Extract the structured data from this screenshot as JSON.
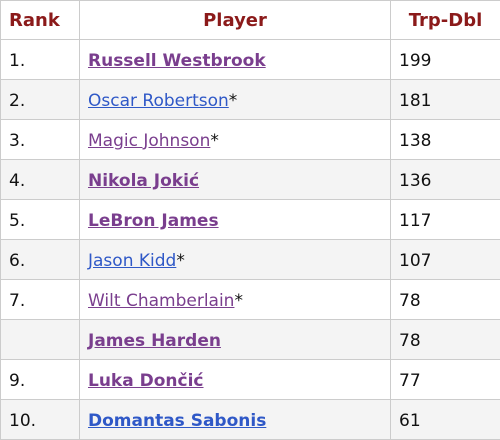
{
  "table": {
    "headers": {
      "rank": "Rank",
      "player": "Player",
      "trp_dbl": "Trp-Dbl"
    },
    "rows": [
      {
        "rank": "1.",
        "player": "Russell Westbrook",
        "hof": "",
        "value": "199",
        "active": true,
        "visited": true
      },
      {
        "rank": "2.",
        "player": "Oscar Robertson",
        "hof": "*",
        "value": "181",
        "active": false,
        "visited": false
      },
      {
        "rank": "3.",
        "player": "Magic Johnson",
        "hof": "*",
        "value": "138",
        "active": false,
        "visited": true
      },
      {
        "rank": "4.",
        "player": "Nikola Jokić",
        "hof": "",
        "value": "136",
        "active": true,
        "visited": true
      },
      {
        "rank": "5.",
        "player": "LeBron James",
        "hof": "",
        "value": "117",
        "active": true,
        "visited": true
      },
      {
        "rank": "6.",
        "player": "Jason Kidd",
        "hof": "*",
        "value": "107",
        "active": false,
        "visited": false
      },
      {
        "rank": "7.",
        "player": "Wilt Chamberlain",
        "hof": "*",
        "value": "78",
        "active": false,
        "visited": true
      },
      {
        "rank": "",
        "player": "James Harden",
        "hof": "",
        "value": "78",
        "active": true,
        "visited": true
      },
      {
        "rank": "9.",
        "player": "Luka Dončić",
        "hof": "",
        "value": "77",
        "active": true,
        "visited": true
      },
      {
        "rank": "10.",
        "player": "Domantas Sabonis",
        "hof": "",
        "value": "61",
        "active": true,
        "visited": false
      }
    ]
  },
  "colors": {
    "header_text": "#8b1a1a",
    "link_visited": "#7a3e8e",
    "link_unvisited": "#2f58c7",
    "border": "#cccccc",
    "row_alt": "#f4f4f4"
  }
}
